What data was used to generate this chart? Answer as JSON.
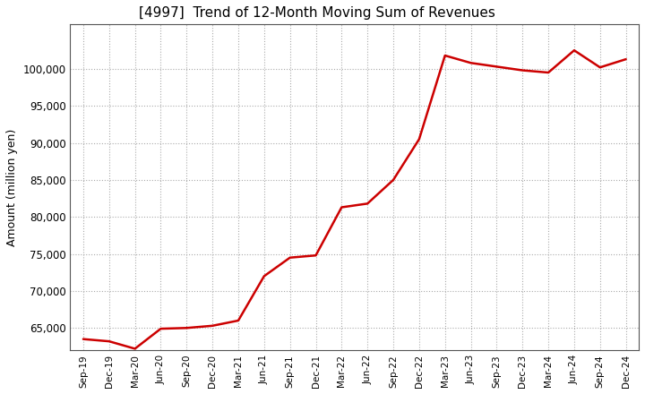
{
  "title": "[4997]  Trend of 12-Month Moving Sum of Revenues",
  "ylabel": "Amount (million yen)",
  "line_color": "#cc0000",
  "line_width": 1.8,
  "background_color": "#ffffff",
  "grid_color": "#aaaaaa",
  "ylim": [
    62000,
    106000
  ],
  "yticks": [
    65000,
    70000,
    75000,
    80000,
    85000,
    90000,
    95000,
    100000
  ],
  "x_labels": [
    "Sep-19",
    "Dec-19",
    "Mar-20",
    "Jun-20",
    "Sep-20",
    "Dec-20",
    "Mar-21",
    "Jun-21",
    "Sep-21",
    "Dec-21",
    "Mar-22",
    "Jun-22",
    "Sep-22",
    "Dec-22",
    "Mar-23",
    "Jun-23",
    "Sep-23",
    "Dec-23",
    "Mar-24",
    "Jun-24",
    "Sep-24",
    "Dec-24"
  ],
  "values": [
    63500,
    63200,
    62200,
    64900,
    65000,
    65300,
    66000,
    72000,
    74500,
    74800,
    81300,
    81800,
    85000,
    90500,
    101800,
    100800,
    100300,
    99800,
    99500,
    102500,
    100200,
    101300
  ]
}
